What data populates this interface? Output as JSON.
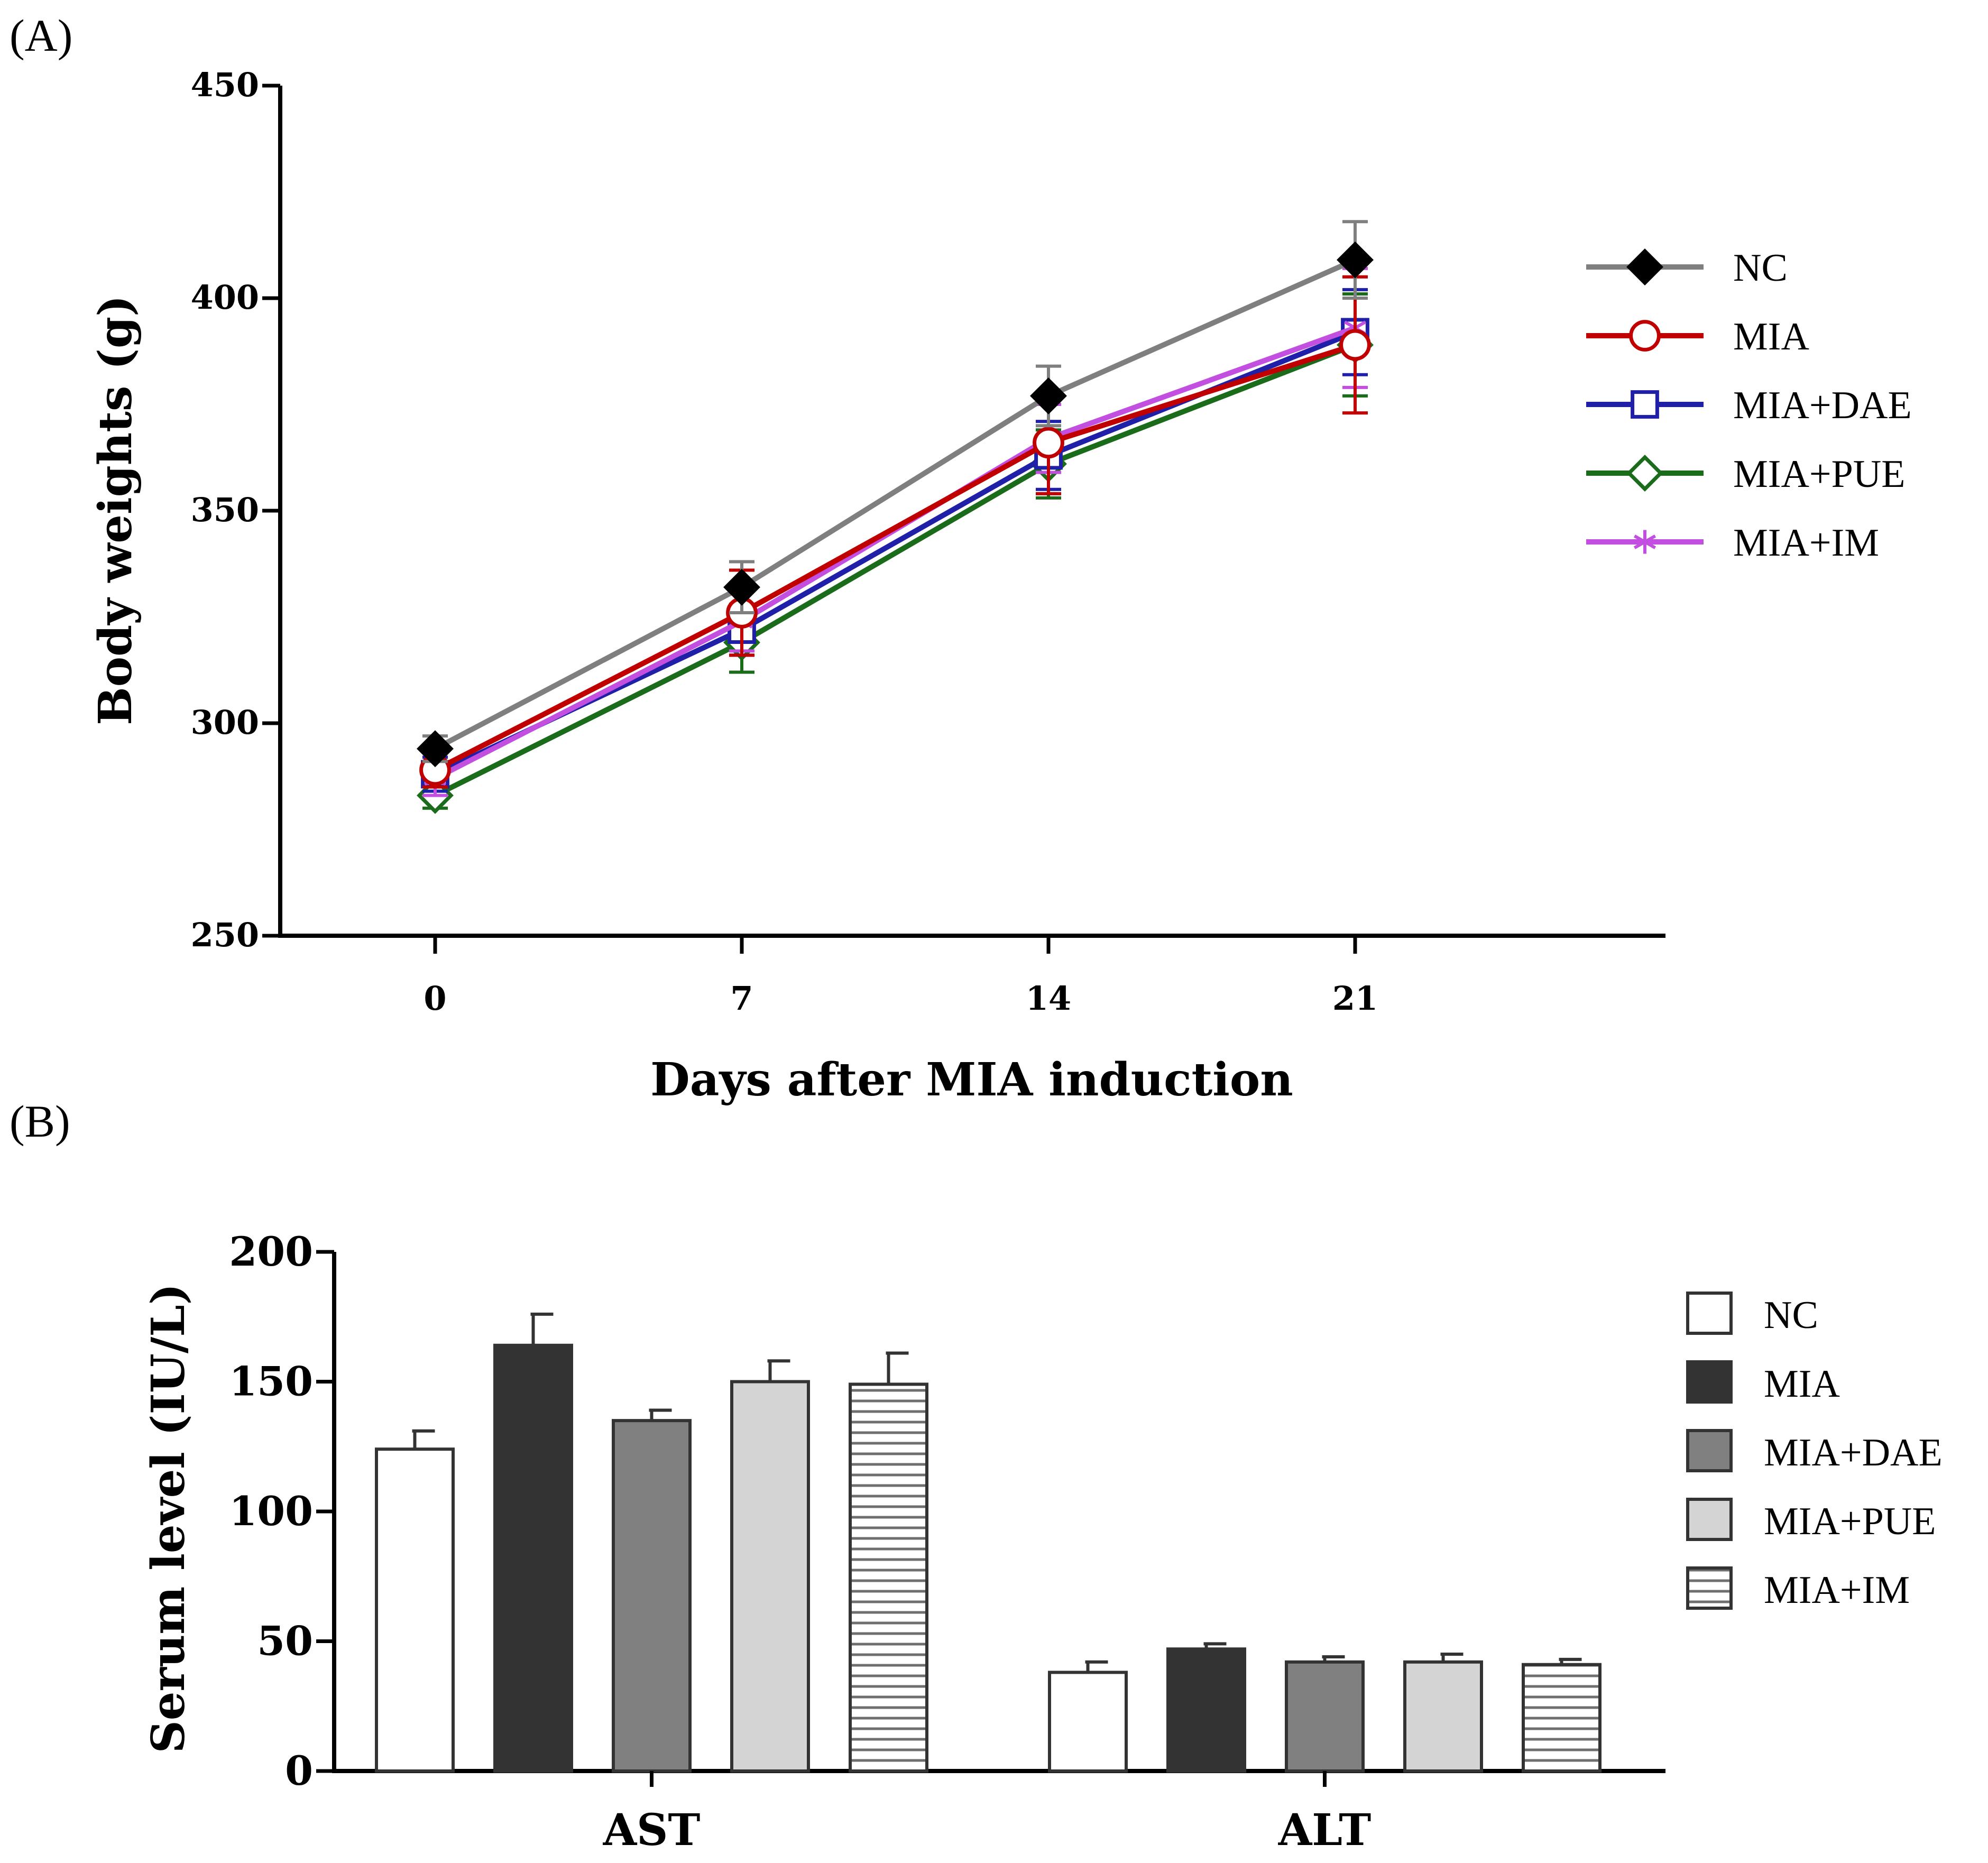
{
  "chart_data": [
    {
      "type": "line",
      "panel_label": "(A)",
      "xlabel": "Days after MIA induction",
      "ylabel": "Body weights (g)",
      "x": [
        0,
        7,
        14,
        21
      ],
      "x_ticks": [
        "0",
        "7",
        "14",
        "21"
      ],
      "ylim": [
        250,
        450
      ],
      "y_ticks": [
        "250",
        "300",
        "350",
        "400",
        "450"
      ],
      "y_tick_values": [
        250,
        300,
        350,
        400,
        450
      ],
      "legend_position": "right",
      "series": [
        {
          "name": "NC",
          "color": "#7f7f7f",
          "marker_color": "#000000",
          "marker": "diamond-filled",
          "values": [
            294,
            332,
            377,
            409
          ],
          "errors": [
            3,
            6,
            7,
            9
          ]
        },
        {
          "name": "MIA",
          "color": "#c00000",
          "marker_color": "#c00000",
          "marker": "circle-open",
          "values": [
            289,
            326,
            366,
            389
          ],
          "errors": [
            4,
            10,
            12,
            16
          ]
        },
        {
          "name": "MIA+DAE",
          "color": "#1f1fa8",
          "marker_color": "#1f1fa8",
          "marker": "square-open",
          "values": [
            288,
            322,
            363,
            392
          ],
          "errors": [
            4,
            6,
            8,
            10
          ]
        },
        {
          "name": "MIA+PUE",
          "color": "#1a6b1a",
          "marker_color": "#1a6b1a",
          "marker": "diamond-open",
          "values": [
            283,
            319,
            361,
            389
          ],
          "errors": [
            3,
            7,
            8,
            12
          ]
        },
        {
          "name": "MIA+IM",
          "color": "#c24fe0",
          "marker_color": "#c24fe0",
          "marker": "asterisk",
          "values": [
            287,
            324,
            367,
            393
          ],
          "errors": [
            4,
            7,
            8,
            14
          ]
        }
      ]
    },
    {
      "type": "bar",
      "panel_label": "(B)",
      "xlabel": "",
      "ylabel": "Serum level (IU/L)",
      "categories": [
        "AST",
        "ALT"
      ],
      "ylim": [
        0,
        200
      ],
      "y_ticks": [
        "0",
        "50",
        "100",
        "150",
        "200"
      ],
      "y_tick_values": [
        0,
        50,
        100,
        150,
        200
      ],
      "legend_position": "right",
      "series": [
        {
          "name": "NC",
          "fill": "#ffffff",
          "pattern": "none",
          "values": [
            124,
            38
          ],
          "errors": [
            7,
            4
          ]
        },
        {
          "name": "MIA",
          "fill": "#333333",
          "pattern": "none",
          "values": [
            164,
            47
          ],
          "errors": [
            12,
            2
          ]
        },
        {
          "name": "MIA+DAE",
          "fill": "#808080",
          "pattern": "none",
          "values": [
            135,
            42
          ],
          "errors": [
            4,
            2
          ]
        },
        {
          "name": "MIA+PUE",
          "fill": "#d4d4d4",
          "pattern": "none",
          "values": [
            150,
            42
          ],
          "errors": [
            8,
            3
          ]
        },
        {
          "name": "MIA+IM",
          "fill": "#ffffff",
          "pattern": "horizontal-lines",
          "values": [
            149,
            41
          ],
          "errors": [
            12,
            2
          ]
        }
      ]
    }
  ]
}
